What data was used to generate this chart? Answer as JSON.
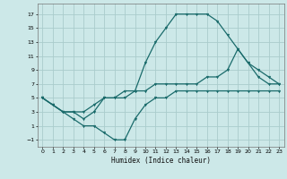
{
  "xlabel": "Humidex (Indice chaleur)",
  "bg_color": "#cce8e8",
  "grid_color": "#aacccc",
  "line_color": "#1a6b6b",
  "xlim": [
    -0.5,
    23.5
  ],
  "ylim": [
    -2.0,
    18.5
  ],
  "yticks": [
    -1,
    1,
    3,
    5,
    7,
    9,
    11,
    13,
    15,
    17
  ],
  "xticks": [
    0,
    1,
    2,
    3,
    4,
    5,
    6,
    7,
    8,
    9,
    10,
    11,
    12,
    13,
    14,
    15,
    16,
    17,
    18,
    19,
    20,
    21,
    22,
    23
  ],
  "curve1_x": [
    0,
    1,
    2,
    3,
    4,
    5,
    6,
    7,
    8,
    9,
    10,
    11,
    12,
    13,
    14,
    15,
    16,
    17,
    18,
    19,
    20,
    21,
    22,
    23
  ],
  "curve1_y": [
    5,
    4,
    3,
    3,
    2,
    3,
    5,
    5,
    6,
    6,
    10,
    13,
    15,
    17,
    17,
    17,
    17,
    16,
    14,
    12,
    10,
    8,
    7,
    7
  ],
  "curve2_x": [
    0,
    1,
    2,
    3,
    4,
    5,
    6,
    7,
    8,
    9,
    10,
    11,
    12,
    13,
    14,
    15,
    16,
    17,
    18,
    19,
    20,
    21,
    22,
    23
  ],
  "curve2_y": [
    5,
    4,
    3,
    2,
    1,
    1,
    0,
    -1,
    -1,
    2,
    4,
    5,
    5,
    6,
    6,
    6,
    6,
    6,
    6,
    6,
    6,
    6,
    6,
    6
  ],
  "curve3_x": [
    0,
    1,
    2,
    3,
    4,
    5,
    6,
    7,
    8,
    9,
    10,
    11,
    12,
    13,
    14,
    15,
    16,
    17,
    18,
    19,
    20,
    21,
    22,
    23
  ],
  "curve3_y": [
    5,
    4,
    3,
    3,
    3,
    4,
    5,
    5,
    5,
    6,
    6,
    7,
    7,
    7,
    7,
    7,
    8,
    8,
    9,
    12,
    10,
    9,
    8,
    7
  ]
}
